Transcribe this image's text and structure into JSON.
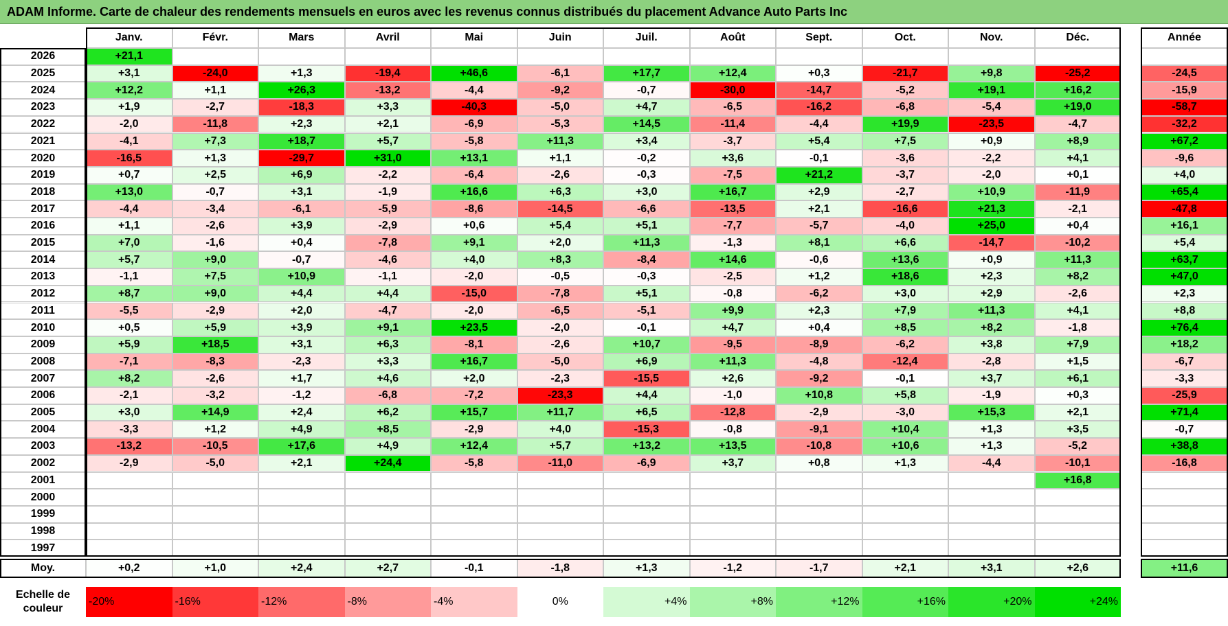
{
  "title": "ADAM Informe. Carte de chaleur des rendements mensuels en euros avec les revenus connus distribués du placement Advance Auto Parts Inc",
  "chart_data": {
    "type": "heatmap",
    "title": "ADAM Informe. Carte de chaleur des rendements mensuels en euros avec les revenus connus distribués du placement Advance Auto Parts Inc",
    "months": [
      "Janv.",
      "Févr.",
      "Mars",
      "Avril",
      "Mai",
      "Juin",
      "Juil.",
      "Août",
      "Sept.",
      "Oct.",
      "Nov.",
      "Déc."
    ],
    "annual_header": "Année",
    "rows": [
      {
        "year": "2026",
        "values": [
          "+21,1",
          "",
          "",
          "",
          "",
          "",
          "",
          "",
          "",
          "",
          "",
          ""
        ],
        "annual": ""
      },
      {
        "year": "2025",
        "values": [
          "+3,1",
          "-24,0",
          "+1,3",
          "-19,4",
          "+46,6",
          "-6,1",
          "+17,7",
          "+12,4",
          "+0,3",
          "-21,7",
          "+9,8",
          "-25,2"
        ],
        "annual": "-24,5"
      },
      {
        "year": "2024",
        "values": [
          "+12,2",
          "+1,1",
          "+26,3",
          "-13,2",
          "-4,4",
          "-9,2",
          "-0,7",
          "-30,0",
          "-14,7",
          "-5,2",
          "+19,1",
          "+16,2"
        ],
        "annual": "-15,9"
      },
      {
        "year": "2023",
        "values": [
          "+1,9",
          "-2,7",
          "-18,3",
          "+3,3",
          "-40,3",
          "-5,0",
          "+4,7",
          "-6,5",
          "-16,2",
          "-6,8",
          "-5,4",
          "+19,0"
        ],
        "annual": "-58,7"
      },
      {
        "year": "2022",
        "values": [
          "-2,0",
          "-11,8",
          "+2,3",
          "+2,1",
          "-6,9",
          "-5,3",
          "+14,5",
          "-11,4",
          "-4,4",
          "+19,9",
          "-23,5",
          "-4,7"
        ],
        "annual": "-32,2"
      },
      {
        "year": "2021",
        "values": [
          "-4,1",
          "+7,3",
          "+18,7",
          "+5,7",
          "-5,8",
          "+11,3",
          "+3,4",
          "-3,7",
          "+5,4",
          "+7,5",
          "+0,9",
          "+8,9"
        ],
        "annual": "+67,2"
      },
      {
        "year": "2020",
        "values": [
          "-16,5",
          "+1,3",
          "-29,7",
          "+31,0",
          "+13,1",
          "+1,1",
          "-0,2",
          "+3,6",
          "-0,1",
          "-3,6",
          "-2,2",
          "+4,1"
        ],
        "annual": "-9,6"
      },
      {
        "year": "2019",
        "values": [
          "+0,7",
          "+2,5",
          "+6,9",
          "-2,2",
          "-6,4",
          "-2,6",
          "-0,3",
          "-7,5",
          "+21,2",
          "-3,7",
          "-2,0",
          "+0,1"
        ],
        "annual": "+4,0"
      },
      {
        "year": "2018",
        "values": [
          "+13,0",
          "-0,7",
          "+3,1",
          "-1,9",
          "+16,6",
          "+6,3",
          "+3,0",
          "+16,7",
          "+2,9",
          "-2,7",
          "+10,9",
          "-11,9"
        ],
        "annual": "+65,4"
      },
      {
        "year": "2017",
        "values": [
          "-4,4",
          "-3,4",
          "-6,1",
          "-5,9",
          "-8,6",
          "-14,5",
          "-6,6",
          "-13,5",
          "+2,1",
          "-16,6",
          "+21,3",
          "-2,1"
        ],
        "annual": "-47,8"
      },
      {
        "year": "2016",
        "values": [
          "+1,1",
          "-2,6",
          "+3,9",
          "-2,9",
          "+0,6",
          "+5,4",
          "+5,1",
          "-7,7",
          "-5,7",
          "-4,0",
          "+25,0",
          "+0,4"
        ],
        "annual": "+16,1"
      },
      {
        "year": "2015",
        "values": [
          "+7,0",
          "-1,6",
          "+0,4",
          "-7,8",
          "+9,1",
          "+2,0",
          "+11,3",
          "-1,3",
          "+8,1",
          "+6,6",
          "-14,7",
          "-10,2"
        ],
        "annual": "+5,4"
      },
      {
        "year": "2014",
        "values": [
          "+5,7",
          "+9,0",
          "-0,7",
          "-4,6",
          "+4,0",
          "+8,3",
          "-8,4",
          "+14,6",
          "-0,6",
          "+13,6",
          "+0,9",
          "+11,3"
        ],
        "annual": "+63,7"
      },
      {
        "year": "2013",
        "values": [
          "-1,1",
          "+7,5",
          "+10,9",
          "-1,1",
          "-2,0",
          "-0,5",
          "-0,3",
          "-2,5",
          "+1,2",
          "+18,6",
          "+2,3",
          "+8,2"
        ],
        "annual": "+47,0"
      },
      {
        "year": "2012",
        "values": [
          "+8,7",
          "+9,0",
          "+4,4",
          "+4,4",
          "-15,0",
          "-7,8",
          "+5,1",
          "-0,8",
          "-6,2",
          "+3,0",
          "+2,9",
          "-2,6"
        ],
        "annual": "+2,3"
      },
      {
        "year": "2011",
        "values": [
          "-5,5",
          "-2,9",
          "+2,0",
          "-4,7",
          "-2,0",
          "-6,5",
          "-5,1",
          "+9,9",
          "+2,3",
          "+7,9",
          "+11,3",
          "+4,1"
        ],
        "annual": "+8,8"
      },
      {
        "year": "2010",
        "values": [
          "+0,5",
          "+5,9",
          "+3,9",
          "+9,1",
          "+23,5",
          "-2,0",
          "-0,1",
          "+4,7",
          "+0,4",
          "+8,5",
          "+8,2",
          "-1,8"
        ],
        "annual": "+76,4"
      },
      {
        "year": "2009",
        "values": [
          "+5,9",
          "+18,5",
          "+3,1",
          "+6,3",
          "-8,1",
          "-2,6",
          "+10,7",
          "-9,5",
          "-8,9",
          "-6,2",
          "+3,8",
          "+7,9"
        ],
        "annual": "+18,2"
      },
      {
        "year": "2008",
        "values": [
          "-7,1",
          "-8,3",
          "-2,3",
          "+3,3",
          "+16,7",
          "-5,0",
          "+6,9",
          "+11,3",
          "-4,8",
          "-12,4",
          "-2,8",
          "+1,5"
        ],
        "annual": "-6,7"
      },
      {
        "year": "2007",
        "values": [
          "+8,2",
          "-2,6",
          "+1,7",
          "+4,6",
          "+2,0",
          "-2,3",
          "-15,5",
          "+2,6",
          "-9,2",
          "-0,1",
          "+3,7",
          "+6,1"
        ],
        "annual": "-3,3"
      },
      {
        "year": "2006",
        "values": [
          "-2,1",
          "-3,2",
          "-1,2",
          "-6,8",
          "-7,2",
          "-23,3",
          "+4,4",
          "-1,0",
          "+10,8",
          "+5,8",
          "-1,9",
          "+0,3"
        ],
        "annual": "-25,9"
      },
      {
        "year": "2005",
        "values": [
          "+3,0",
          "+14,9",
          "+2,4",
          "+6,2",
          "+15,7",
          "+11,7",
          "+6,5",
          "-12,8",
          "-2,9",
          "-3,0",
          "+15,3",
          "+2,1"
        ],
        "annual": "+71,4"
      },
      {
        "year": "2004",
        "values": [
          "-3,3",
          "+1,2",
          "+4,9",
          "+8,5",
          "-2,9",
          "+4,0",
          "-15,3",
          "-0,8",
          "-9,1",
          "+10,4",
          "+1,3",
          "+3,5"
        ],
        "annual": "-0,7"
      },
      {
        "year": "2003",
        "values": [
          "-13,2",
          "-10,5",
          "+17,6",
          "+4,9",
          "+12,4",
          "+5,7",
          "+13,2",
          "+13,5",
          "-10,8",
          "+10,6",
          "+1,3",
          "-5,2"
        ],
        "annual": "+38,8"
      },
      {
        "year": "2002",
        "values": [
          "-2,9",
          "-5,0",
          "+2,1",
          "+24,4",
          "-5,8",
          "-11,0",
          "-6,9",
          "+3,7",
          "+0,8",
          "+1,3",
          "-4,4",
          "-10,1"
        ],
        "annual": "-16,8"
      },
      {
        "year": "2001",
        "values": [
          "",
          "",
          "",
          "",
          "",
          "",
          "",
          "",
          "",
          "",
          "",
          "+16,8"
        ],
        "annual": ""
      },
      {
        "year": "2000",
        "values": [
          "",
          "",
          "",
          "",
          "",
          "",
          "",
          "",
          "",
          "",
          "",
          ""
        ],
        "annual": ""
      },
      {
        "year": "1999",
        "values": [
          "",
          "",
          "",
          "",
          "",
          "",
          "",
          "",
          "",
          "",
          "",
          ""
        ],
        "annual": ""
      },
      {
        "year": "1998",
        "values": [
          "",
          "",
          "",
          "",
          "",
          "",
          "",
          "",
          "",
          "",
          "",
          ""
        ],
        "annual": ""
      },
      {
        "year": "1997",
        "values": [
          "",
          "",
          "",
          "",
          "",
          "",
          "",
          "",
          "",
          "",
          "",
          ""
        ],
        "annual": ""
      }
    ],
    "average": {
      "label": "Moy.",
      "values": [
        "+0,2",
        "+1,0",
        "+2,4",
        "+2,7",
        "-0,1",
        "-1,8",
        "+1,3",
        "-1,2",
        "-1,7",
        "+2,1",
        "+3,1",
        "+2,6"
      ],
      "annual": "+11,6"
    },
    "color_scale": {
      "label": "Echelle de couleur",
      "stops": [
        {
          "label": "-20%",
          "value": -20,
          "color": "#ff0000"
        },
        {
          "label": "-16%",
          "value": -16,
          "color": "#ff3838"
        },
        {
          "label": "-12%",
          "value": -12,
          "color": "#ff6a6a"
        },
        {
          "label": "-8%",
          "value": -8,
          "color": "#ff9a9a"
        },
        {
          "label": "-4%",
          "value": -4,
          "color": "#ffc8c8"
        },
        {
          "label": "0%",
          "value": 0,
          "color": "#ffffff"
        },
        {
          "label": "+4%",
          "value": 4,
          "color": "#d4fad4"
        },
        {
          "label": "+8%",
          "value": 8,
          "color": "#aaf5aa"
        },
        {
          "label": "+12%",
          "value": 12,
          "color": "#80f080"
        },
        {
          "label": "+16%",
          "value": 16,
          "color": "#55eb55"
        },
        {
          "label": "+20%",
          "value": 20,
          "color": "#2ae52a"
        },
        {
          "label": "+24%",
          "value": 24,
          "color": "#00e000"
        }
      ]
    }
  }
}
